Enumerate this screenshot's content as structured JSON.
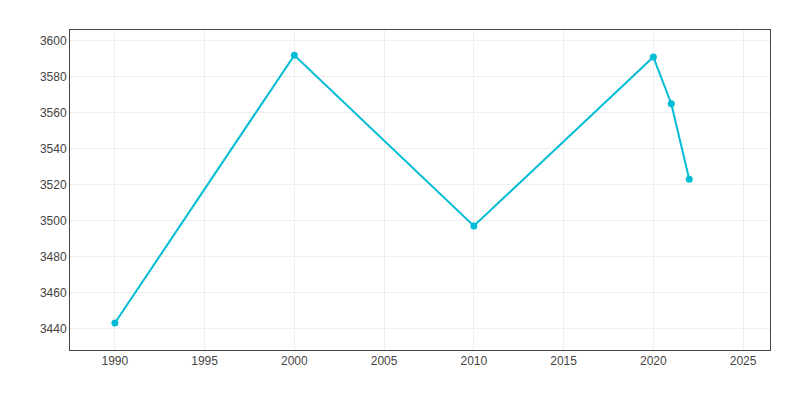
{
  "chart_data": {
    "type": "line",
    "x": [
      1990,
      2000,
      2010,
      2020,
      2021,
      2022
    ],
    "values": [
      3443,
      3592,
      3497,
      3591,
      3565,
      3523
    ],
    "color": "#00bcd4",
    "marker": "circle",
    "xlim": [
      1987.5,
      2026.5
    ],
    "ylim": [
      3428,
      3606
    ],
    "xticks": [
      1990,
      1995,
      2000,
      2005,
      2010,
      2015,
      2020,
      2025
    ],
    "yticks": [
      3440,
      3460,
      3480,
      3500,
      3520,
      3540,
      3560,
      3580,
      3600
    ],
    "grid": true
  }
}
